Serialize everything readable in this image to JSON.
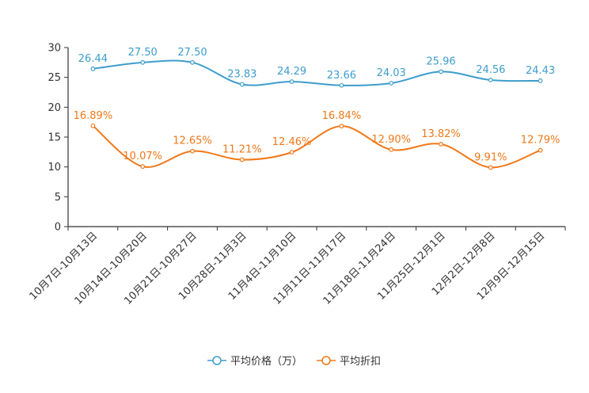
{
  "chart_data": {
    "type": "line",
    "title": "",
    "xlabel": "",
    "ylabel": "",
    "ylim": [
      0,
      30
    ],
    "yticks": [
      0,
      5,
      10,
      15,
      20,
      25,
      30
    ],
    "grid": false,
    "legend_position": "bottom-center",
    "categories": [
      "10月7日-10月13日",
      "10月14日-10月20日",
      "10月21日-10月27日",
      "10月28日-11月3日",
      "11月4日-11月10日",
      "11月11日-11月17日",
      "11月18日-11月24日",
      "11月25日-12月1日",
      "12月2日-12月8日",
      "12月9日-12月15日"
    ],
    "series": [
      {
        "name": "平均价格（万）",
        "color": "#3d9dcc",
        "values": [
          26.44,
          27.5,
          27.5,
          23.83,
          24.29,
          23.66,
          24.03,
          25.96,
          24.56,
          24.43
        ],
        "labels": [
          "26.44",
          "27.50",
          "27.50",
          "23.83",
          "24.29",
          "23.66",
          "24.03",
          "25.96",
          "24.56",
          "24.43"
        ]
      },
      {
        "name": "平均折扣",
        "color": "#f07818",
        "values": [
          16.89,
          10.07,
          12.65,
          11.21,
          12.46,
          16.84,
          12.9,
          13.82,
          9.91,
          12.79
        ],
        "labels": [
          "16.89%",
          "10.07%",
          "12.65%",
          "11.21%",
          "12.46%",
          "16.84%",
          "12.90%",
          "13.82%",
          "9.91%",
          "12.79%"
        ]
      }
    ]
  }
}
